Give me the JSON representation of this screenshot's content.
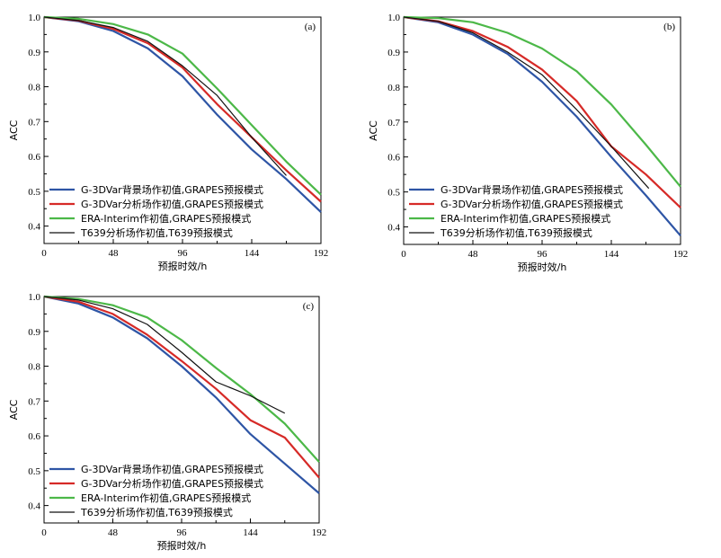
{
  "colors": {
    "G-3DVar背景场作初值,GRAPES预报模式": "#2e55a5",
    "G-3DVar分析场作初值,GRAPES预报模式": "#d62a27",
    "ERA-Interim作初值,GRAPES预报模式": "#4cb848",
    "T639分析场作初值,T639预报模式": "#111111"
  },
  "chart_data": [
    {
      "type": "line",
      "label": "(a)",
      "xlabel": "预报时效/h",
      "ylabel": "ACC",
      "xlim": [
        0,
        192
      ],
      "ylim": [
        0.35,
        1.0
      ],
      "xticks": [
        "0",
        "48",
        "96",
        "144",
        "192"
      ],
      "yticks": [
        "0.4",
        "0.5",
        "0.6",
        "0.7",
        "0.8",
        "0.9",
        "1.0"
      ],
      "legend_position": "bottom-left",
      "series": [
        {
          "name": "G-3DVar背景场作初值,GRAPES预报模式",
          "x": [
            0,
            24,
            48,
            72,
            96,
            120,
            144,
            168,
            192
          ],
          "y": [
            1.0,
            0.988,
            0.96,
            0.91,
            0.83,
            0.72,
            0.62,
            0.535,
            0.44
          ]
        },
        {
          "name": "G-3DVar分析场作初值,GRAPES预报模式",
          "x": [
            0,
            24,
            48,
            72,
            96,
            120,
            144,
            168,
            192
          ],
          "y": [
            1.0,
            0.99,
            0.966,
            0.925,
            0.855,
            0.75,
            0.655,
            0.56,
            0.47
          ]
        },
        {
          "name": "ERA-Interim作初值,GRAPES预报模式",
          "x": [
            0,
            24,
            48,
            72,
            96,
            120,
            144,
            168,
            192
          ],
          "y": [
            1.0,
            0.995,
            0.98,
            0.95,
            0.895,
            0.795,
            0.69,
            0.585,
            0.49
          ]
        },
        {
          "name": "T639分析场作初值,T639预报模式",
          "x": [
            0,
            24,
            48,
            72,
            96,
            120,
            144,
            168
          ],
          "y": [
            1.0,
            0.99,
            0.97,
            0.93,
            0.86,
            0.775,
            0.655,
            0.545
          ]
        }
      ]
    },
    {
      "type": "line",
      "label": "(b)",
      "xlabel": "预报时效/h",
      "ylabel": "ACC",
      "xlim": [
        0,
        192
      ],
      "ylim": [
        0.35,
        1.0
      ],
      "xticks": [
        "0",
        "48",
        "96",
        "144",
        "192"
      ],
      "yticks": [
        "0.4",
        "0.5",
        "0.6",
        "0.7",
        "0.8",
        "0.9",
        "1.0"
      ],
      "legend_position": "bottom-left",
      "series": [
        {
          "name": "G-3DVar背景场作初值,GRAPES预报模式",
          "x": [
            0,
            24,
            48,
            72,
            96,
            120,
            144,
            168,
            192
          ],
          "y": [
            1.0,
            0.985,
            0.95,
            0.895,
            0.815,
            0.715,
            0.6,
            0.49,
            0.375
          ]
        },
        {
          "name": "G-3DVar分析场作初值,GRAPES预报模式",
          "x": [
            0,
            24,
            48,
            72,
            96,
            120,
            144,
            168,
            192
          ],
          "y": [
            1.0,
            0.988,
            0.96,
            0.915,
            0.85,
            0.76,
            0.63,
            0.55,
            0.455
          ]
        },
        {
          "name": "ERA-Interim作初值,GRAPES预报模式",
          "x": [
            0,
            24,
            48,
            72,
            96,
            120,
            144,
            168,
            192
          ],
          "y": [
            1.0,
            0.997,
            0.985,
            0.955,
            0.91,
            0.845,
            0.75,
            0.635,
            0.515
          ]
        },
        {
          "name": "T639分析场作初值,T639预报模式",
          "x": [
            0,
            24,
            48,
            72,
            96,
            120,
            144,
            170
          ],
          "y": [
            1.0,
            0.988,
            0.955,
            0.9,
            0.835,
            0.735,
            0.63,
            0.51
          ]
        }
      ]
    },
    {
      "type": "line",
      "label": "(c)",
      "xlabel": "预报时效/h",
      "ylabel": "ACC",
      "xlim": [
        0,
        192
      ],
      "ylim": [
        0.35,
        1.0
      ],
      "xticks": [
        "0",
        "48",
        "96",
        "144",
        "192"
      ],
      "yticks": [
        "0.4",
        "0.5",
        "0.6",
        "0.7",
        "0.8",
        "0.9",
        "1.0"
      ],
      "legend_position": "bottom-left",
      "series": [
        {
          "name": "G-3DVar背景场作初值,GRAPES预报模式",
          "x": [
            0,
            24,
            48,
            72,
            96,
            120,
            144,
            168,
            192
          ],
          "y": [
            1.0,
            0.98,
            0.94,
            0.88,
            0.8,
            0.71,
            0.605,
            0.52,
            0.435
          ]
        },
        {
          "name": "G-3DVar分析场作初值,GRAPES预报模式",
          "x": [
            0,
            24,
            48,
            72,
            96,
            120,
            144,
            168,
            192
          ],
          "y": [
            1.0,
            0.985,
            0.95,
            0.89,
            0.815,
            0.735,
            0.645,
            0.595,
            0.48
          ]
        },
        {
          "name": "ERA-Interim作初值,GRAPES预报模式",
          "x": [
            0,
            24,
            48,
            72,
            96,
            120,
            144,
            168,
            192
          ],
          "y": [
            1.0,
            0.993,
            0.975,
            0.94,
            0.875,
            0.795,
            0.72,
            0.635,
            0.525
          ]
        },
        {
          "name": "T639分析场作初值,T639预报模式",
          "x": [
            0,
            24,
            48,
            72,
            96,
            120,
            144,
            168
          ],
          "y": [
            1.0,
            0.99,
            0.965,
            0.92,
            0.84,
            0.755,
            0.715,
            0.665
          ]
        }
      ]
    }
  ]
}
